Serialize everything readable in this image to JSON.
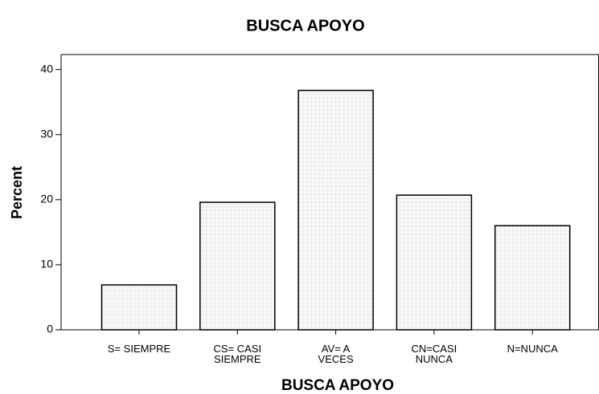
{
  "chart_data": {
    "type": "bar",
    "title": "BUSCA APOYO",
    "x_label": "BUSCA APOYO",
    "y_label": "Percent",
    "categories": [
      "S= SIEMPRE",
      "CS= CASI\nSIEMPRE",
      "AV= A\nVECES",
      "CN=CASI\nNUNCA",
      "N=NUNCA"
    ],
    "values": [
      6.9,
      19.6,
      36.8,
      20.7,
      16.0
    ],
    "color": "#f4f4f4",
    "ylim": [
      0,
      42.3
    ],
    "yticks": [
      0,
      10,
      20,
      30,
      40
    ],
    "grid": false
  }
}
